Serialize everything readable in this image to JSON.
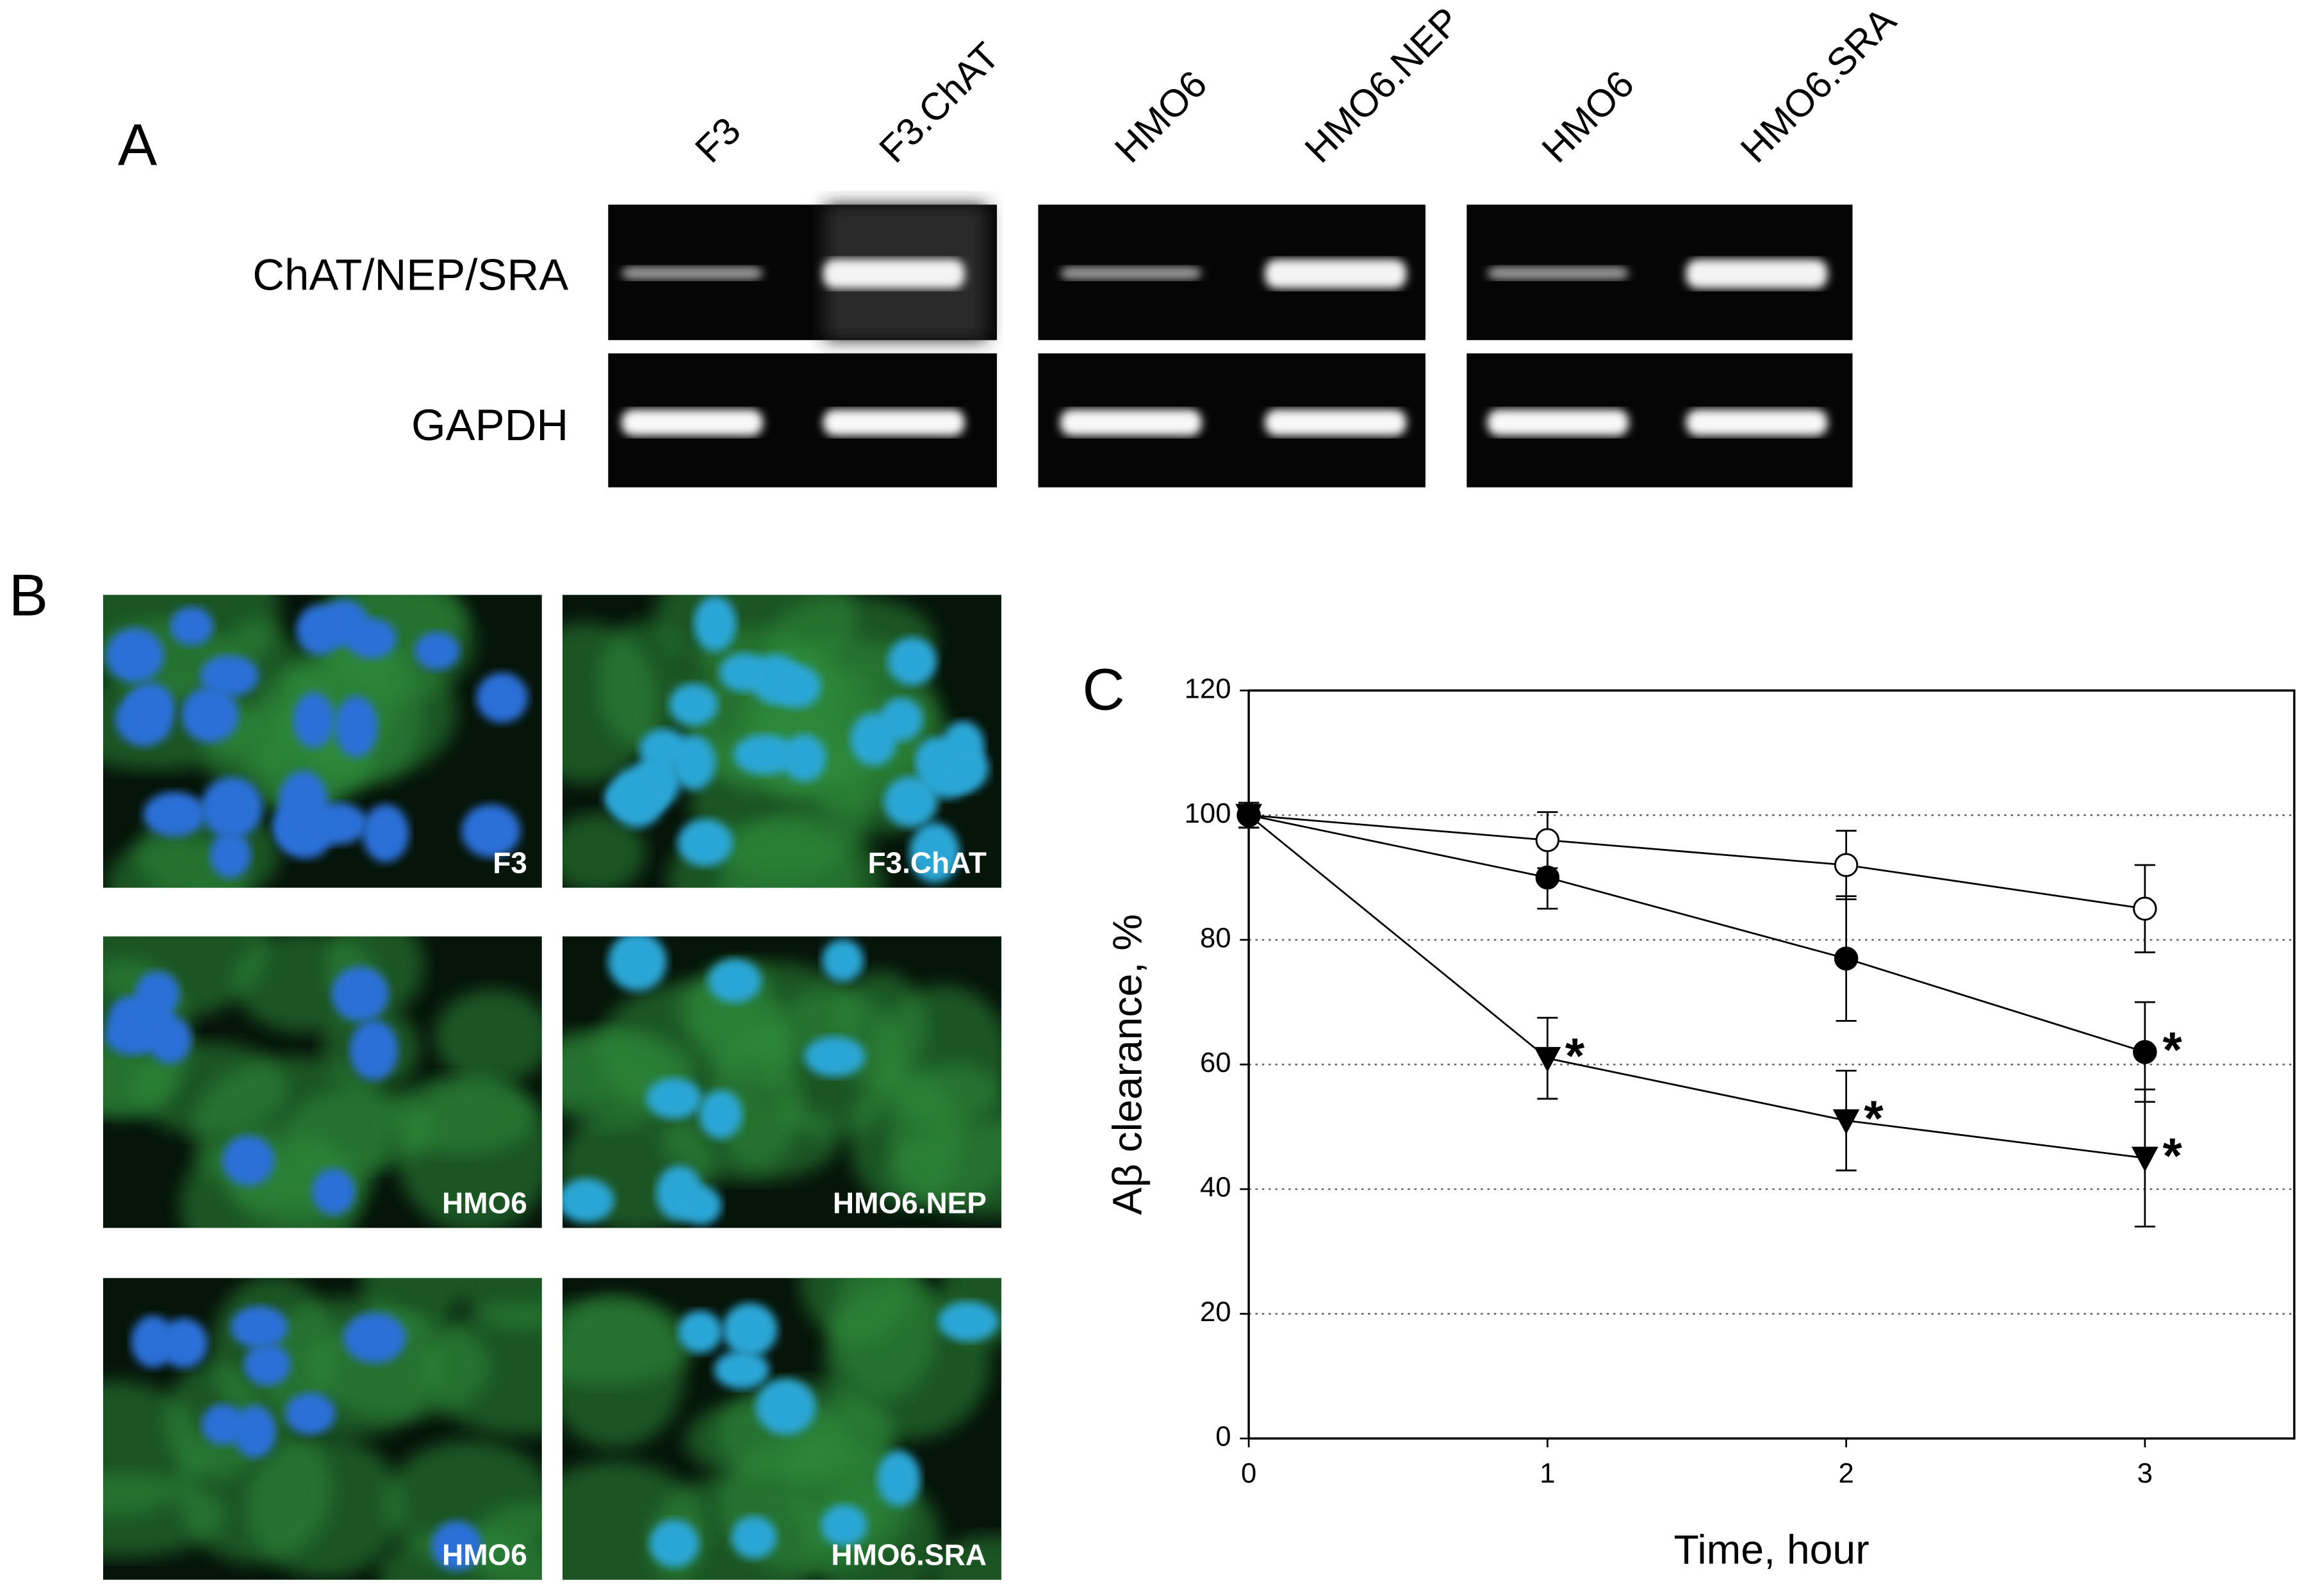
{
  "panel_a": {
    "label": "A",
    "lanes": [
      "F3",
      "F3.ChAT",
      "HMO6",
      "HMO6.NEP",
      "HMO6",
      "HMO6.SRA"
    ],
    "rows": [
      "ChAT/NEP/SRA",
      "GAPDH"
    ]
  },
  "panel_b": {
    "label": "B",
    "images": [
      "F3",
      "F3.ChAT",
      "HMO6",
      "HMO6.NEP",
      "HMO6",
      "HMO6.SRA"
    ]
  },
  "chart_data": {
    "type": "line",
    "title": "C",
    "x": [
      0,
      1,
      2,
      3
    ],
    "xlim": [
      0,
      3.5
    ],
    "xticks": [
      0,
      1,
      2,
      3
    ],
    "ylim": [
      0,
      120
    ],
    "yticks": [
      0,
      20,
      40,
      60,
      80,
      100,
      120
    ],
    "xlabel": "Time, hour",
    "ylabel": "Aβ clearance, %",
    "grid": true,
    "series": [
      {
        "marker": "open-circle",
        "color": "#000000",
        "values": [
          100,
          96,
          92,
          85
        ],
        "errors": [
          2,
          4.5,
          5.5,
          7
        ],
        "labels": [
          null,
          null,
          null,
          null
        ]
      },
      {
        "marker": "filled-circle",
        "color": "#000000",
        "values": [
          100,
          90,
          77,
          62
        ],
        "errors": [
          2,
          5,
          10,
          8
        ],
        "labels": [
          null,
          null,
          null,
          "*"
        ]
      },
      {
        "marker": "down-triangle",
        "color": "#000000",
        "values": [
          100,
          61,
          51,
          45
        ],
        "errors": [
          2,
          6.5,
          8,
          11
        ],
        "labels": [
          null,
          "*",
          "*",
          "*"
        ]
      }
    ]
  }
}
